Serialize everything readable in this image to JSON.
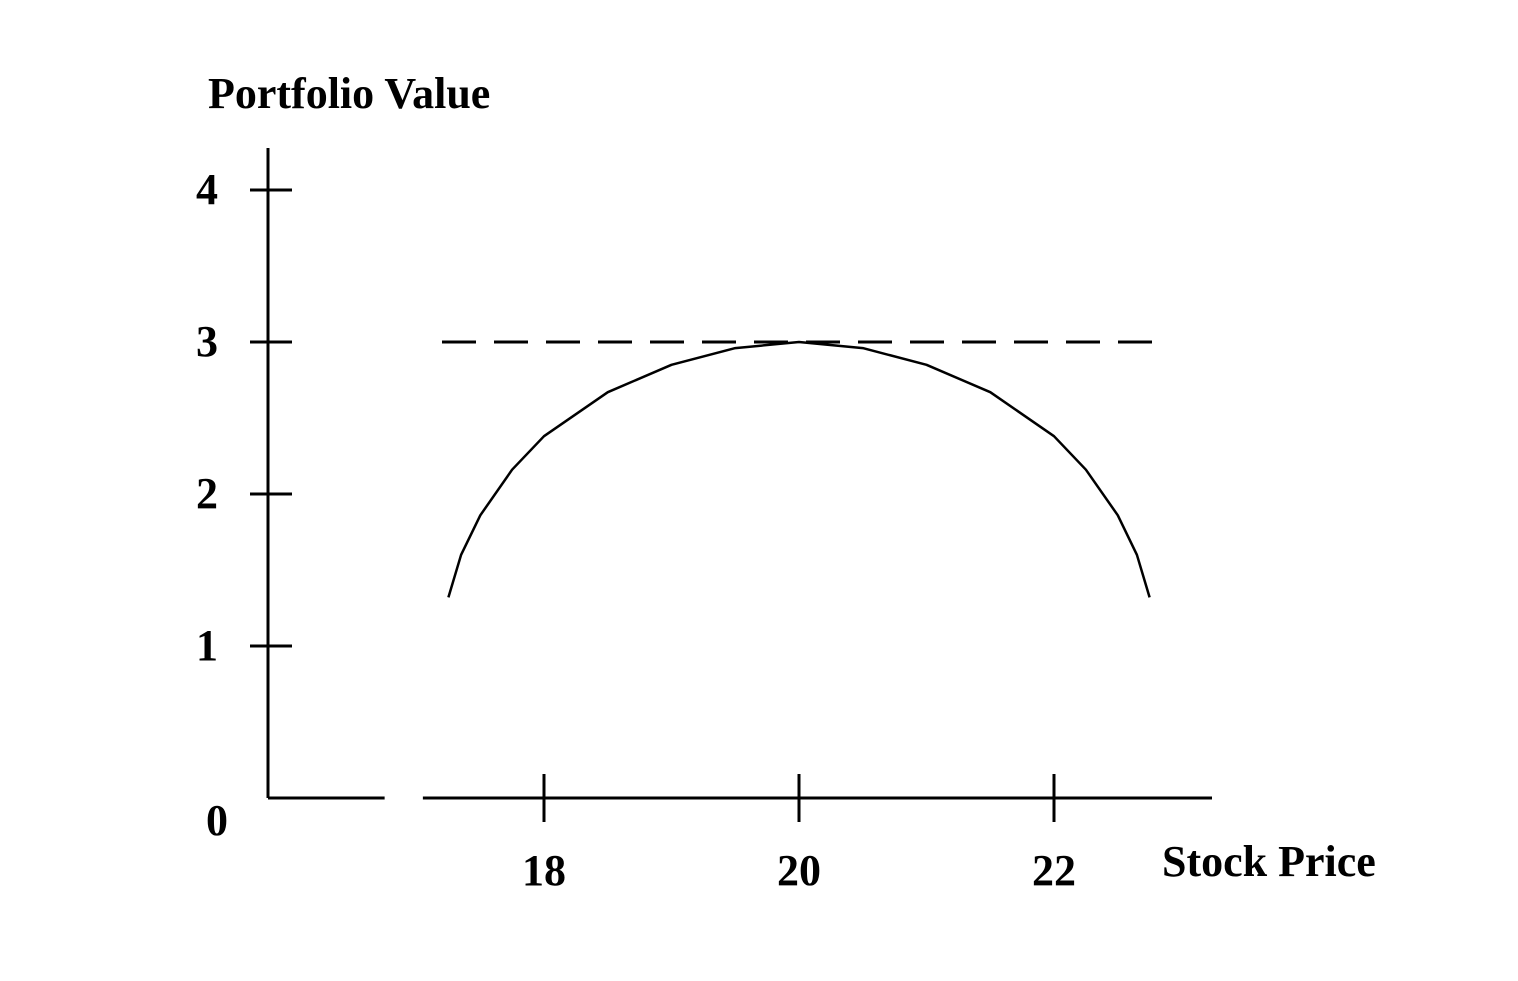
{
  "chart_data": {
    "type": "line",
    "title": "",
    "ylabel": "Portfolio Value",
    "xlabel": "Stock Price",
    "ylim": [
      0,
      4
    ],
    "xlim": [
      16.2,
      23.3
    ],
    "origin_label": "0",
    "yticks": [
      {
        "value": 1,
        "label": "1"
      },
      {
        "value": 2,
        "label": "2"
      },
      {
        "value": 3,
        "label": "3"
      },
      {
        "value": 4,
        "label": "4"
      }
    ],
    "xticks": [
      {
        "value": 18,
        "label": "18"
      },
      {
        "value": 20,
        "label": "20"
      },
      {
        "value": 22,
        "label": "22"
      }
    ],
    "x_axis_break": [
      16.75,
      17.05
    ],
    "grid": false,
    "series": [
      {
        "style": "dashed",
        "color": "#000000",
        "points": [
          [
            17.2,
            3.0
          ],
          [
            22.8,
            3.0
          ]
        ]
      },
      {
        "style": "solid",
        "color": "#000000",
        "points": [
          [
            17.25,
            1.32
          ],
          [
            17.35,
            1.6
          ],
          [
            17.5,
            1.86
          ],
          [
            17.75,
            2.16
          ],
          [
            18.0,
            2.38
          ],
          [
            18.5,
            2.67
          ],
          [
            19.0,
            2.85
          ],
          [
            19.5,
            2.96
          ],
          [
            20.0,
            3.0
          ],
          [
            20.5,
            2.96
          ],
          [
            21.0,
            2.85
          ],
          [
            21.5,
            2.67
          ],
          [
            22.0,
            2.38
          ],
          [
            22.25,
            2.16
          ],
          [
            22.5,
            1.86
          ],
          [
            22.65,
            1.6
          ],
          [
            22.75,
            1.32
          ]
        ]
      }
    ]
  }
}
